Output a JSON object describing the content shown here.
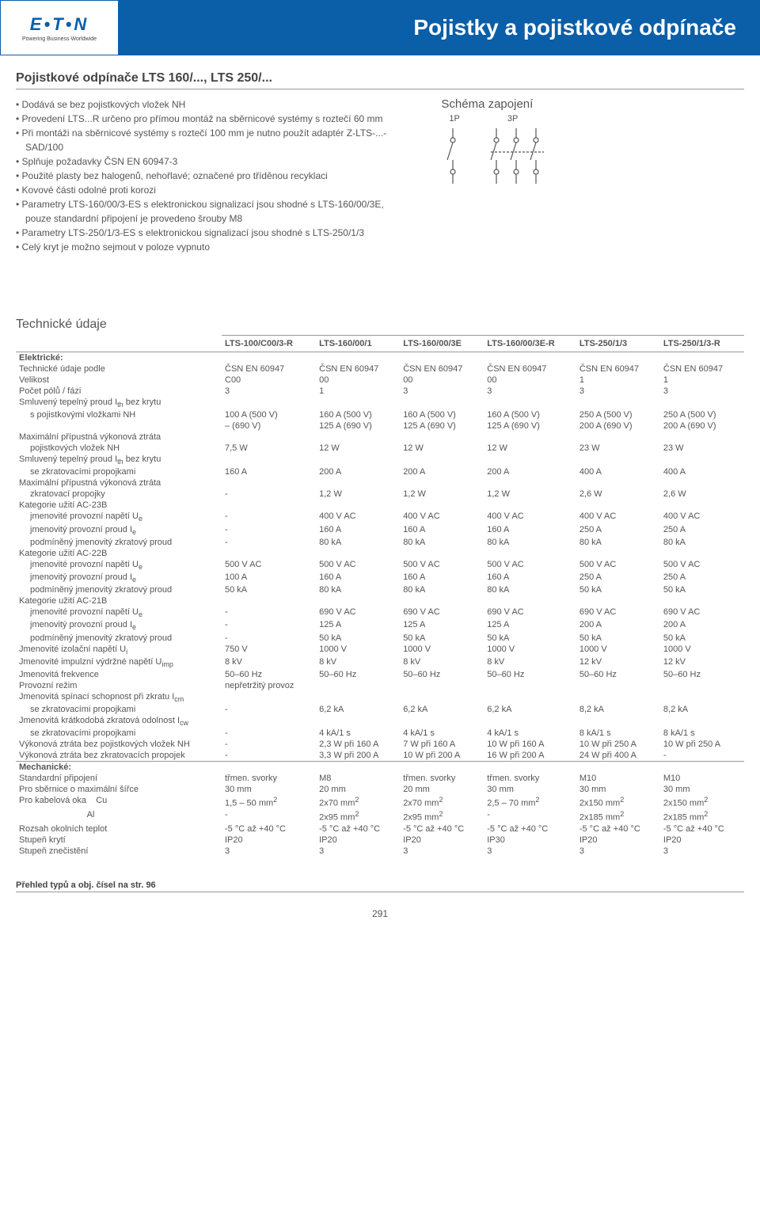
{
  "banner": {
    "logo_text": "E•T•N",
    "logo_sub": "Powering Business Worldwide",
    "title": "Pojistky a pojistkové odpínače"
  },
  "subtitle": "Pojistkové odpínače LTS 160/..., LTS 250/...",
  "bullets": [
    "Dodává se bez pojistkových vložek NH",
    "Provedení LTS...R určeno pro přímou montáž na sběrnicové systémy s roztečí 60 mm",
    "Při montáži na sběrnicové systémy s roztečí 100 mm je nutno použít adaptér Z-LTS-...-SAD/100",
    "Splňuje požadavky ČSN EN 60947-3",
    "Použité plasty bez halogenů, nehořlavé; označené pro tříděnou recyklaci",
    "Kovové části odolné proti korozi",
    "Parametry LTS-160/00/3-ES s elektronickou signalizací jsou shodné s LTS-160/00/3E, pouze standardní připojení je provedeno šrouby M8",
    "Parametry LTS-250/1/3-ES s elektronickou signalizací jsou shodné s LTS-250/1/3",
    "Celý kryt je možno sejmout v poloze vypnuto"
  ],
  "schema": {
    "title": "Schéma zapojení",
    "label1": "1P",
    "label2": "3P"
  },
  "tech_title": "Technické údaje",
  "columns": [
    "",
    "LTS-100/C00/3-R",
    "LTS-160/00/1",
    "LTS-160/00/3E",
    "LTS-160/00/3E-R",
    "LTS-250/1/3",
    "LTS-250/1/3-R"
  ],
  "groups": [
    {
      "header": "Elektrické:",
      "rows": [
        {
          "label": "Technické údaje podle",
          "cells": [
            "ČSN EN 60947",
            "ČSN EN 60947",
            "ČSN EN 60947",
            "ČSN EN 60947",
            "ČSN EN 60947",
            "ČSN EN 60947"
          ]
        },
        {
          "label": "Velikost",
          "cells": [
            "C00",
            "00",
            "00",
            "00",
            "1",
            "1"
          ]
        },
        {
          "label": "Počet pólů / fázi",
          "cells": [
            "3",
            "1",
            "3",
            "3",
            "3",
            "3"
          ]
        },
        {
          "label": "Smluvený tepelný proud I<sub>th</sub> bez krytu",
          "cells": [
            "",
            "",
            "",
            "",
            "",
            ""
          ]
        },
        {
          "label": "s pojistkovými vložkami NH",
          "indent": true,
          "cells": [
            "100 A (500 V)",
            "160 A (500 V)",
            "160 A (500 V)",
            "160 A (500 V)",
            "250 A (500 V)",
            "250 A (500 V)"
          ]
        },
        {
          "label": "",
          "indent": true,
          "cells": [
            "– (690 V)",
            "125 A (690 V)",
            "125 A (690 V)",
            "125 A (690 V)",
            "200 A (690 V)",
            "200 A (690 V)"
          ]
        },
        {
          "label": "Maximální přípustná výkonová ztráta",
          "cells": [
            "",
            "",
            "",
            "",
            "",
            ""
          ]
        },
        {
          "label": "pojistkových vložek NH",
          "indent": true,
          "cells": [
            "7,5 W",
            "12 W",
            "12 W",
            "12 W",
            "23 W",
            "23 W"
          ]
        },
        {
          "label": "Smluvený tepelný proud I<sub>th</sub> bez krytu",
          "cells": [
            "",
            "",
            "",
            "",
            "",
            ""
          ]
        },
        {
          "label": "se zkratovacími propojkami",
          "indent": true,
          "cells": [
            "160 A",
            "200 A",
            "200 A",
            "200 A",
            "400 A",
            "400 A"
          ]
        },
        {
          "label": "Maximální přípustná výkonová ztráta",
          "cells": [
            "",
            "",
            "",
            "",
            "",
            ""
          ]
        },
        {
          "label": "zkratovací propojky",
          "indent": true,
          "cells": [
            "-",
            "1,2 W",
            "1,2 W",
            "1,2 W",
            "2,6 W",
            "2,6 W"
          ]
        },
        {
          "label": "Kategorie užití AC-23B",
          "cells": [
            "",
            "",
            "",
            "",
            "",
            ""
          ]
        },
        {
          "label": "jmenovité provozní napětí U<sub>e</sub>",
          "indent": true,
          "cells": [
            "-",
            "400 V AC",
            "400 V AC",
            "400 V AC",
            "400 V AC",
            "400 V AC"
          ]
        },
        {
          "label": "jmenovitý provozní proud I<sub>e</sub>",
          "indent": true,
          "cells": [
            "-",
            "160 A",
            "160 A",
            "160 A",
            "250 A",
            "250 A"
          ]
        },
        {
          "label": "podmíněný jmenovitý zkratový proud",
          "indent": true,
          "cells": [
            "-",
            "80 kA",
            "80 kA",
            "80 kA",
            "80 kA",
            "80 kA"
          ]
        },
        {
          "label": "Kategorie užití AC-22B",
          "cells": [
            "",
            "",
            "",
            "",
            "",
            ""
          ]
        },
        {
          "label": "jmenovité provozní napětí U<sub>e</sub>",
          "indent": true,
          "cells": [
            "500 V AC",
            "500 V AC",
            "500 V AC",
            "500 V AC",
            "500 V AC",
            "500 V AC"
          ]
        },
        {
          "label": "jmenovitý provozní proud I<sub>e</sub>",
          "indent": true,
          "cells": [
            "100 A",
            "160 A",
            "160 A",
            "160 A",
            "250 A",
            "250 A"
          ]
        },
        {
          "label": "podmíněný jmenovitý zkratový proud",
          "indent": true,
          "cells": [
            "50 kA",
            "80 kA",
            "80 kA",
            "80 kA",
            "50 kA",
            "50 kA"
          ]
        },
        {
          "label": "Kategorie užití AC-21B",
          "cells": [
            "",
            "",
            "",
            "",
            "",
            ""
          ]
        },
        {
          "label": "jmenovité provozní napětí U<sub>e</sub>",
          "indent": true,
          "cells": [
            "-",
            "690 V AC",
            "690 V AC",
            "690 V AC",
            "690 V AC",
            "690 V AC"
          ]
        },
        {
          "label": "jmenovitý provozní proud I<sub>e</sub>",
          "indent": true,
          "cells": [
            "-",
            "125 A",
            "125 A",
            "125 A",
            "200 A",
            "200 A"
          ]
        },
        {
          "label": "podmíněný jmenovitý zkratový proud",
          "indent": true,
          "cells": [
            "-",
            "50 kA",
            "50 kA",
            "50 kA",
            "50 kA",
            "50 kA"
          ]
        },
        {
          "label": "Jmenovité izolační napětí U<sub>i</sub>",
          "cells": [
            "750 V",
            "1000 V",
            "1000 V",
            "1000 V",
            "1000 V",
            "1000 V"
          ]
        },
        {
          "label": "Jmenovité impulzní výdržné napětí U<sub>imp</sub>",
          "cells": [
            "8 kV",
            "8 kV",
            "8 kV",
            "8 kV",
            "12 kV",
            "12 kV"
          ]
        },
        {
          "label": "Jmenovitá frekvence",
          "cells": [
            "50–60 Hz",
            "50–60 Hz",
            "50–60 Hz",
            "50–60 Hz",
            "50–60 Hz",
            "50–60 Hz"
          ]
        },
        {
          "label": "Provozní režim",
          "cells": [
            "nepřetržitý provoz",
            "",
            "",
            "",
            "",
            ""
          ]
        },
        {
          "label": "Jmenovitá spínací schopnost při zkratu I<sub>cm</sub>",
          "cells": [
            "",
            "",
            "",
            "",
            "",
            ""
          ]
        },
        {
          "label": "se zkratovacími propojkami",
          "indent": true,
          "cells": [
            "-",
            "6,2 kA",
            "6,2 kA",
            "6,2 kA",
            "8,2 kA",
            "8,2 kA"
          ]
        },
        {
          "label": "Jmenovitá krátkodobá zkratová odolnost I<sub>cw</sub>",
          "cells": [
            "",
            "",
            "",
            "",
            "",
            ""
          ]
        },
        {
          "label": "se zkratovacími propojkami",
          "indent": true,
          "cells": [
            "-",
            "4 kA/1 s",
            "4 kA/1 s",
            "4 kA/1 s",
            "8 kA/1 s",
            "8 kA/1 s"
          ]
        },
        {
          "label": "Výkonová ztráta bez pojistkových vložek  NH",
          "cells": [
            "-",
            "2,3 W při 160 A",
            "7 W při 160 A",
            "10 W při 160 A",
            "10 W při 250 A",
            "10 W při 250 A"
          ]
        },
        {
          "label": "Výkonová ztráta bez zkratovacích propojek",
          "cells": [
            "-",
            "3,3 W při 200 A",
            "10 W při 200 A",
            "16 W při 200 A",
            "24 W při 400 A",
            "-"
          ]
        }
      ]
    },
    {
      "header": "Mechanické:",
      "rows": [
        {
          "label": "Standardní připojení",
          "cells": [
            "třmen. svorky",
            "M8",
            "třmen. svorky",
            "třmen. svorky",
            "M10",
            "M10"
          ]
        },
        {
          "label": "Pro sběrnice o maximální šířce",
          "cells": [
            "30 mm",
            "20 mm",
            "20 mm",
            "30 mm",
            "30 mm",
            "30 mm"
          ]
        },
        {
          "label": "Pro kabelová oka&nbsp;&nbsp;&nbsp;&nbsp;Cu",
          "cells": [
            "1,5 – 50 mm<sup>2</sup>",
            "2x70 mm<sup>2</sup>",
            "2x70 mm<sup>2</sup>",
            "2,5 – 70 mm<sup>2</sup>",
            "2x150 mm<sup>2</sup>",
            "2x150 mm<sup>2</sup>"
          ]
        },
        {
          "label": "&nbsp;&nbsp;&nbsp;&nbsp;&nbsp;&nbsp;&nbsp;&nbsp;&nbsp;&nbsp;&nbsp;&nbsp;&nbsp;&nbsp;&nbsp;&nbsp;&nbsp;&nbsp;&nbsp;&nbsp;&nbsp;&nbsp;&nbsp;&nbsp;&nbsp;&nbsp;&nbsp;&nbsp;Al",
          "cells": [
            "-",
            "2x95 mm<sup>2</sup>",
            "2x95 mm<sup>2</sup>",
            "-",
            "2x185 mm<sup>2</sup>",
            "2x185 mm<sup>2</sup>"
          ]
        },
        {
          "label": "Rozsah okolních teplot",
          "cells": [
            "-5 °C až +40 °C",
            "-5 °C až +40 °C",
            "-5 °C až +40 °C",
            "-5 °C až +40 °C",
            "-5 °C až +40 °C",
            "-5 °C až +40 °C"
          ]
        },
        {
          "label": "Stupeň krytí",
          "cells": [
            "IP20",
            "IP20",
            "IP20",
            "IP30",
            "IP20",
            "IP20"
          ]
        },
        {
          "label": "Stupeň znečistění",
          "cells": [
            "3",
            "3",
            "3",
            "3",
            "3",
            "3"
          ]
        }
      ]
    }
  ],
  "footer_note": "Přehled typů a obj. čísel na str. 96",
  "page_num": "291",
  "colors": {
    "brand_blue": "#0b5ea8",
    "text_gray": "#555555",
    "rule_gray": "#999999"
  }
}
